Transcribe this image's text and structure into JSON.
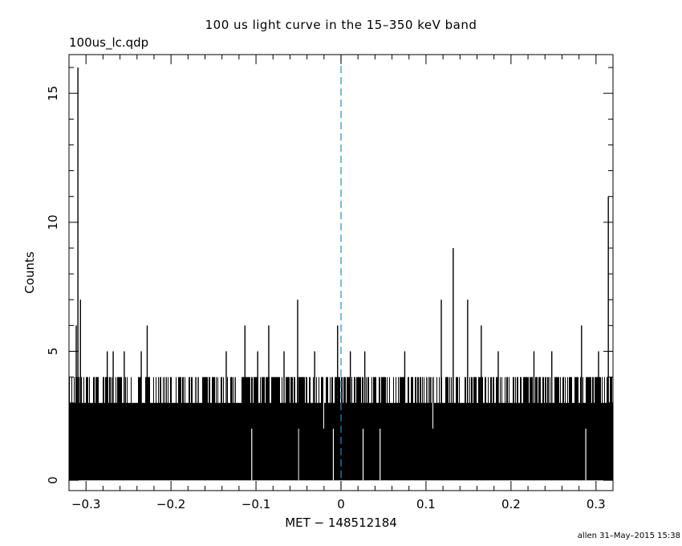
{
  "chart_data": {
    "type": "bar",
    "title": "100 us light curve in the 15–350 keV band",
    "filename": "100us_lc.qdp",
    "xlabel": "MET − 148512184",
    "ylabel": "Counts",
    "xlim": [
      -0.32,
      0.32
    ],
    "ylim": [
      -0.4,
      16.5
    ],
    "xticks": [
      -0.3,
      -0.2,
      -0.1,
      0,
      0.1,
      0.2,
      0.3
    ],
    "xtick_labels": [
      "−0.3",
      "−0.2",
      "−0.1",
      "0",
      "0.1",
      "0.2",
      "0.3"
    ],
    "yticks": [
      0,
      5,
      10,
      15
    ],
    "ytick_labels": [
      "0",
      "5",
      "10",
      "15"
    ],
    "bin_width": 0.0001,
    "baseline_counts": 3,
    "trigger_line": {
      "x": 0,
      "color": "#1e90c8"
    },
    "peaks": [
      {
        "x": -0.3115,
        "y": 6
      },
      {
        "x": -0.3095,
        "y": 16
      },
      {
        "x": -0.3065,
        "y": 7
      },
      {
        "x": -0.275,
        "y": 5
      },
      {
        "x": -0.268,
        "y": 5
      },
      {
        "x": -0.255,
        "y": 5
      },
      {
        "x": -0.235,
        "y": 5
      },
      {
        "x": -0.228,
        "y": 6
      },
      {
        "x": -0.135,
        "y": 5
      },
      {
        "x": -0.113,
        "y": 6
      },
      {
        "x": -0.098,
        "y": 5
      },
      {
        "x": -0.085,
        "y": 6
      },
      {
        "x": -0.067,
        "y": 5
      },
      {
        "x": -0.051,
        "y": 7
      },
      {
        "x": -0.031,
        "y": 5
      },
      {
        "x": -0.004,
        "y": 6
      },
      {
        "x": 0.011,
        "y": 5
      },
      {
        "x": 0.028,
        "y": 5
      },
      {
        "x": 0.075,
        "y": 5
      },
      {
        "x": 0.118,
        "y": 7
      },
      {
        "x": 0.132,
        "y": 9
      },
      {
        "x": 0.149,
        "y": 7
      },
      {
        "x": 0.165,
        "y": 6
      },
      {
        "x": 0.185,
        "y": 5
      },
      {
        "x": 0.227,
        "y": 5
      },
      {
        "x": 0.248,
        "y": 5
      },
      {
        "x": 0.283,
        "y": 6
      },
      {
        "x": 0.303,
        "y": 5
      },
      {
        "x": 0.3145,
        "y": 11
      }
    ],
    "gaps": [
      {
        "x": -0.105,
        "y": 1
      },
      {
        "x": -0.05,
        "y": 1
      },
      {
        "x": -0.009,
        "y": 1
      },
      {
        "x": 0.026,
        "y": 1
      },
      {
        "x": 0.046,
        "y": 1
      },
      {
        "x": 0.288,
        "y": 1
      }
    ]
  },
  "footer": "allen 31–May–2015 15:38"
}
